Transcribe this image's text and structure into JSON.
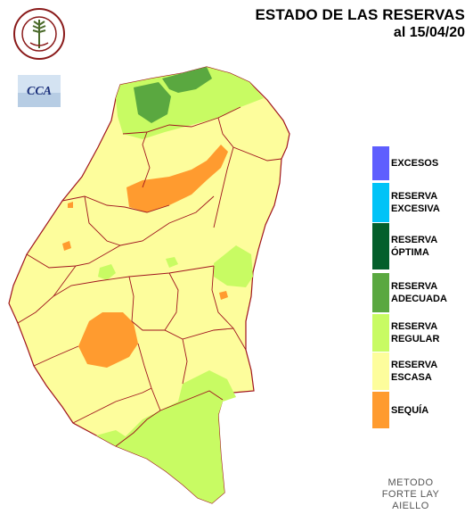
{
  "title": {
    "line1": "ESTADO DE LAS RESERVAS",
    "line2": "al 15/04/20"
  },
  "logos": {
    "bolsa_ring_text": "BOLSA DE CEREALES DE ENTRE RIOS",
    "cca_text": "CCA"
  },
  "legend": [
    {
      "id": "excesos",
      "line1": "EXCESOS",
      "line2": "",
      "color": "#5e5efe"
    },
    {
      "id": "excesiva",
      "line1": "RESERVA",
      "line2": "EXCESIVA",
      "color": "#00c3f7"
    },
    {
      "id": "optima",
      "line1": "RESERVA",
      "line2": "ÓPTIMA",
      "color": "#045f2b"
    },
    {
      "id": "adecuada",
      "line1": "RESERVA",
      "line2": "ADECUADA",
      "color": "#5aa840"
    },
    {
      "id": "regular",
      "line1": "RESERVA",
      "line2": "REGULAR",
      "color": "#c8fb63"
    },
    {
      "id": "escasa",
      "line1": "RESERVA",
      "line2": "ESCASA",
      "color": "#fdfd9c"
    },
    {
      "id": "sequia",
      "line1": "SEQUÍA",
      "line2": "",
      "color": "#ff9b2f"
    }
  ],
  "method": {
    "line1": "METODO",
    "line2": "FORTE LAY",
    "line3": "AIELLO"
  },
  "map_colors": {
    "border": "#a0141e",
    "escasa": "#fdfd9c",
    "regular": "#c8fb63",
    "adecuada": "#5aa840",
    "sequia": "#ff9b2f"
  }
}
